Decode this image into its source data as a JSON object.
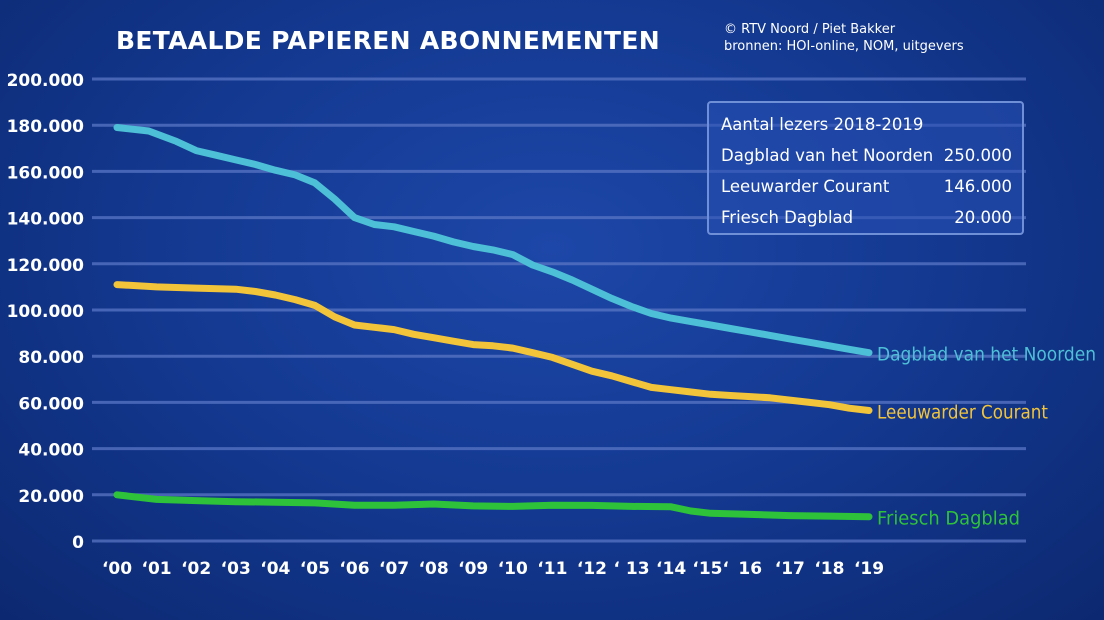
{
  "header": {
    "title": "BETAALDE PAPIEREN ABONNEMENTEN",
    "credit_line1": "© RTV Noord / Piet Bakker",
    "credit_line2": "bronnen: HOI-online, NOM, uitgevers"
  },
  "infobox": {
    "heading": "Aantal lezers 2018-2019",
    "rows": [
      {
        "name": "Dagblad van het Noorden",
        "value": "250.000"
      },
      {
        "name": "Leeuwarder Courant",
        "value": "146.000"
      },
      {
        "name": "Friesch Dagblad",
        "value": "20.000"
      }
    ]
  },
  "colors": {
    "background": "#143a93",
    "grid": "#5a76c4",
    "dvhn": "#4dbfd6",
    "lc": "#f2c43a",
    "fd": "#2ec23a",
    "text": "#ffffff"
  },
  "chart_data": {
    "type": "line",
    "title": "BETAALDE PAPIEREN ABONNEMENTEN",
    "xlabel": "",
    "ylabel": "",
    "ylim": [
      0,
      200000
    ],
    "yticks": [
      0,
      20000,
      40000,
      60000,
      80000,
      100000,
      120000,
      140000,
      160000,
      180000,
      200000
    ],
    "ytick_labels": [
      "0",
      "20.000",
      "40.000",
      "60.000",
      "80.000",
      "100.000",
      "120.000",
      "140.000",
      "160.000",
      "180.000",
      "200.000"
    ],
    "x_ticks": [
      2000,
      2001,
      2002,
      2003,
      2004,
      2005,
      2006,
      2007,
      2008,
      2009,
      2010,
      2011,
      2012,
      2013,
      2014,
      2015,
      2016,
      2017,
      2018,
      2019
    ],
    "x_tick_labels": [
      "‘00",
      "‘01",
      "‘02",
      "‘03",
      "‘04",
      "‘05",
      "‘06",
      "‘07",
      "‘08",
      "‘09",
      "‘10",
      "‘11",
      "‘12",
      "‘ 13",
      "‘14",
      "‘15‘",
      "16",
      "‘17",
      "‘18",
      "‘19"
    ],
    "grid": true,
    "series": [
      {
        "name": "Dagblad van het Noorden",
        "color": "#4dbfd6",
        "x": [
          2000,
          2000.8,
          2001.5,
          2002,
          2002.5,
          2003,
          2003.5,
          2004,
          2004.5,
          2005,
          2005.5,
          2006,
          2006.5,
          2007,
          2007.5,
          2008,
          2008.5,
          2009,
          2009.5,
          2010,
          2010.5,
          2011,
          2011.5,
          2012,
          2012.5,
          2013,
          2013.5,
          2014,
          2014.5,
          2015,
          2015.5,
          2016,
          2016.5,
          2017,
          2017.5,
          2018,
          2018.5,
          2019
        ],
        "values": [
          179000,
          177500,
          173000,
          169000,
          167000,
          165000,
          163000,
          160500,
          158500,
          155000,
          148000,
          140000,
          137000,
          136000,
          134000,
          132000,
          129500,
          127500,
          126000,
          124000,
          119500,
          116500,
          113000,
          109000,
          105000,
          101500,
          98500,
          96500,
          95000,
          93500,
          92000,
          90500,
          89000,
          87500,
          86000,
          84500,
          83000,
          81500
        ]
      },
      {
        "name": "Leeuwarder Courant",
        "color": "#f2c43a",
        "x": [
          2000,
          2001,
          2002,
          2003,
          2003.5,
          2004,
          2004.5,
          2005,
          2005.5,
          2006,
          2006.5,
          2007,
          2007.5,
          2008,
          2008.5,
          2009,
          2009.5,
          2010,
          2010.5,
          2011,
          2011.5,
          2012,
          2012.5,
          2013,
          2013.5,
          2014,
          2014.5,
          2015,
          2015.5,
          2016,
          2016.5,
          2017,
          2017.5,
          2018,
          2018.5,
          2019
        ],
        "values": [
          111000,
          110000,
          109500,
          109000,
          108000,
          106500,
          104500,
          102000,
          97000,
          93500,
          92500,
          91500,
          89500,
          88000,
          86500,
          85000,
          84500,
          83500,
          81500,
          79500,
          76500,
          73500,
          71500,
          69000,
          66500,
          65500,
          64500,
          63500,
          63000,
          62500,
          62000,
          61000,
          60000,
          59000,
          57500,
          56500
        ]
      },
      {
        "name": "Friesch Dagblad",
        "color": "#2ec23a",
        "x": [
          2000,
          2001,
          2002,
          2003,
          2004,
          2005,
          2006,
          2007,
          2008,
          2009,
          2010,
          2011,
          2012,
          2013,
          2014,
          2014.5,
          2015,
          2016,
          2017,
          2018,
          2019
        ],
        "values": [
          20000,
          18000,
          17500,
          17000,
          16800,
          16500,
          15500,
          15500,
          16000,
          15200,
          15000,
          15500,
          15400,
          15000,
          14800,
          13000,
          12000,
          11500,
          11000,
          10800,
          10500
        ]
      }
    ]
  }
}
